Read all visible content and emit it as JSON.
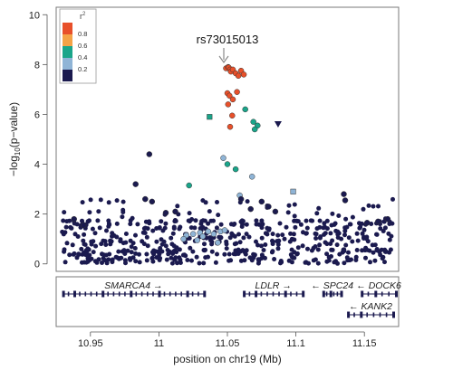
{
  "chart_data": {
    "type": "scatter",
    "xlabel": "position on chr19 (Mb)",
    "ylabel": "−log",
    "ylabel_subscript": "10",
    "ylabel_suffix": "(p−value)",
    "xlim": [
      10.925,
      11.175
    ],
    "ylim": [
      -0.3,
      10.3
    ],
    "x_ticks": [
      10.95,
      11,
      11.05,
      11.1,
      11.15
    ],
    "x_tick_labels": [
      "10.95",
      "11",
      "11.05",
      "11.1",
      "11.15"
    ],
    "y_ticks": [
      0,
      2,
      4,
      6,
      8,
      10
    ],
    "y_tick_labels": [
      "0",
      "2",
      "4",
      "6",
      "8",
      "10"
    ],
    "grid": false,
    "legend": {
      "title": "r",
      "title_sup": "2",
      "placement": "top-left",
      "entries": [
        {
          "label": "0.8",
          "color": "#e8502a"
        },
        {
          "label": "0.6",
          "color": "#f4a347"
        },
        {
          "label": "0.4",
          "color": "#1aa58a"
        },
        {
          "label": "0.2",
          "color": "#8fb4d6"
        },
        {
          "label": "",
          "color": "#1b1a4f"
        }
      ]
    },
    "colors": {
      "r2_08_1": "#e8502a",
      "r2_06_08": "#f4a347",
      "r2_04_06": "#1aa58a",
      "r2_02_04": "#8fb4d6",
      "r2_0_02": "#1b1a4f",
      "unknown_ld": "#8a8a8a"
    },
    "annotation": {
      "label": "rs73015013",
      "x": 11.0505,
      "y": 7.9
    },
    "series": [
      {
        "r2_bin": "0.8-1",
        "color": "#e8502a",
        "marker": "circle",
        "points": [
          [
            11.049,
            7.85
          ],
          [
            11.0505,
            7.9
          ],
          [
            11.051,
            7.88
          ],
          [
            11.052,
            7.8
          ],
          [
            11.0525,
            7.72
          ],
          [
            11.054,
            7.8
          ],
          [
            11.056,
            7.65
          ],
          [
            11.058,
            7.55
          ],
          [
            11.06,
            7.75
          ],
          [
            11.062,
            7.6
          ],
          [
            11.05,
            6.85
          ],
          [
            11.0515,
            6.75
          ],
          [
            11.054,
            6.6
          ],
          [
            11.0505,
            6.4
          ],
          [
            11.057,
            6.9
          ],
          [
            11.0535,
            5.95
          ],
          [
            11.052,
            5.5
          ]
        ]
      },
      {
        "r2_bin": "0.4-0.6",
        "color": "#1aa58a",
        "marker": "circle",
        "points": [
          [
            11.063,
            6.2
          ],
          [
            11.069,
            5.7
          ],
          [
            11.072,
            5.55
          ],
          [
            11.07,
            5.4
          ],
          [
            11.05,
            4.0
          ],
          [
            11.056,
            3.8
          ],
          [
            11.022,
            3.15
          ]
        ]
      },
      {
        "r2_bin": "0.4-0.6 (square)",
        "color": "#1aa58a",
        "marker": "square",
        "points": [
          [
            11.037,
            5.9
          ]
        ]
      },
      {
        "r2_bin": "0.2-0.4",
        "color": "#8fb4d6",
        "marker": "circle",
        "points": [
          [
            11.047,
            4.25
          ],
          [
            11.068,
            3.5
          ],
          [
            11.059,
            2.75
          ],
          [
            11.03,
            1.25
          ],
          [
            11.036,
            1.3
          ],
          [
            11.04,
            1.2
          ],
          [
            11.045,
            1.3
          ],
          [
            11.025,
            1.2
          ],
          [
            11.02,
            1.15
          ],
          [
            11.032,
            1.1
          ],
          [
            11.028,
            0.95
          ],
          [
            11.043,
            0.85
          ],
          [
            11.018,
            1.0
          ],
          [
            11.048,
            1.35
          ]
        ]
      },
      {
        "r2_bin": "0.2-0.4 (square)",
        "color": "#8fb4d6",
        "marker": "square",
        "points": [
          [
            11.098,
            2.9
          ]
        ]
      },
      {
        "r2_bin": "0-0.2 (triangle)",
        "color": "#1b1a4f",
        "marker": "triangle",
        "points": [
          [
            11.087,
            5.6
          ]
        ]
      },
      {
        "r2_bin": "0-0.2 (highlighted)",
        "color": "#1b1a4f",
        "marker": "circle",
        "points": [
          [
            10.993,
            4.4
          ],
          [
            10.983,
            3.2
          ],
          [
            11.135,
            2.8
          ],
          [
            11.136,
            2.55
          ],
          [
            10.99,
            2.6
          ],
          [
            10.995,
            2.5
          ],
          [
            11.06,
            2.6
          ],
          [
            11.075,
            2.5
          ],
          [
            11.067,
            2.2
          ],
          [
            11.08,
            2.3
          ],
          [
            11.085,
            2.1
          ],
          [
            10.938,
            1.8
          ],
          [
            10.945,
            1.55
          ],
          [
            11.005,
            2.05
          ],
          [
            11.012,
            2.1
          ],
          [
            11.167,
            1.8
          ],
          [
            11.152,
            1.65
          ],
          [
            11.16,
            1.7
          ]
        ]
      }
    ]
  },
  "gene_track": {
    "genes": [
      {
        "name": "SMARCA4",
        "arrow": "→",
        "strand": "+",
        "start": 10.93,
        "end": 11.033,
        "row": 0
      },
      {
        "name": "LDLR",
        "arrow": "→",
        "strand": "+",
        "start": 11.062,
        "end": 11.105,
        "row": 0
      },
      {
        "name": "SPC24",
        "arrow": "←",
        "strand": "-",
        "start": 11.12,
        "end": 11.133,
        "row": 0
      },
      {
        "name": "DOCK6",
        "arrow": "←",
        "strand": "-",
        "start": 11.148,
        "end": 11.173,
        "row": 0
      },
      {
        "name": "KANK2",
        "arrow": "←",
        "strand": "-",
        "start": 11.138,
        "end": 11.171,
        "row": 1
      }
    ]
  }
}
